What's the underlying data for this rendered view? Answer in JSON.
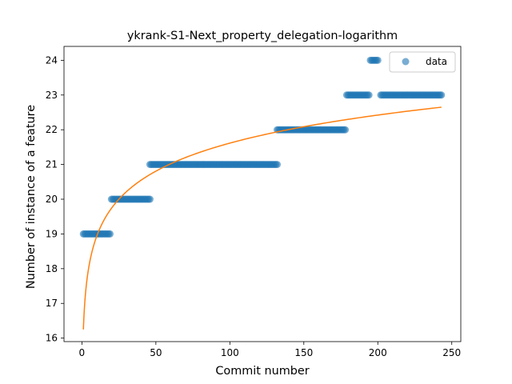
{
  "chart_data": {
    "type": "scatter",
    "title": "ykrank-S1-Next_property_delegation-logarithm",
    "xlabel": "Commit number",
    "ylabel": "Number of instance of a feature",
    "xlim": [
      -12.1,
      256.1
    ],
    "ylim": [
      15.9,
      24.4
    ],
    "x_ticks": [
      0,
      50,
      100,
      150,
      200,
      250
    ],
    "y_ticks": [
      16,
      17,
      18,
      19,
      20,
      21,
      22,
      23,
      24
    ],
    "legend": {
      "placement": "top-right",
      "entries": [
        "data"
      ]
    },
    "colors": {
      "data": "#1f77b4",
      "fit": "#ff7f0e"
    },
    "series": [
      {
        "name": "data",
        "kind": "points",
        "segments": [
          {
            "x_start": 1,
            "x_end": 19,
            "y": 19
          },
          {
            "x_start": 20,
            "x_end": 46,
            "y": 20
          },
          {
            "x_start": 46,
            "x_end": 132,
            "y": 21
          },
          {
            "x_start": 132,
            "x_end": 178,
            "y": 22
          },
          {
            "x_start": 179,
            "x_end": 194,
            "y": 23
          },
          {
            "x_start": 195,
            "x_end": 200,
            "y": 24
          },
          {
            "x_start": 202,
            "x_end": 243,
            "y": 23
          }
        ]
      },
      {
        "kind": "fit-curve",
        "model": "y = a + b * ln(x)",
        "a": 16.25,
        "b": 1.165,
        "x_range": [
          1,
          243
        ]
      }
    ]
  }
}
